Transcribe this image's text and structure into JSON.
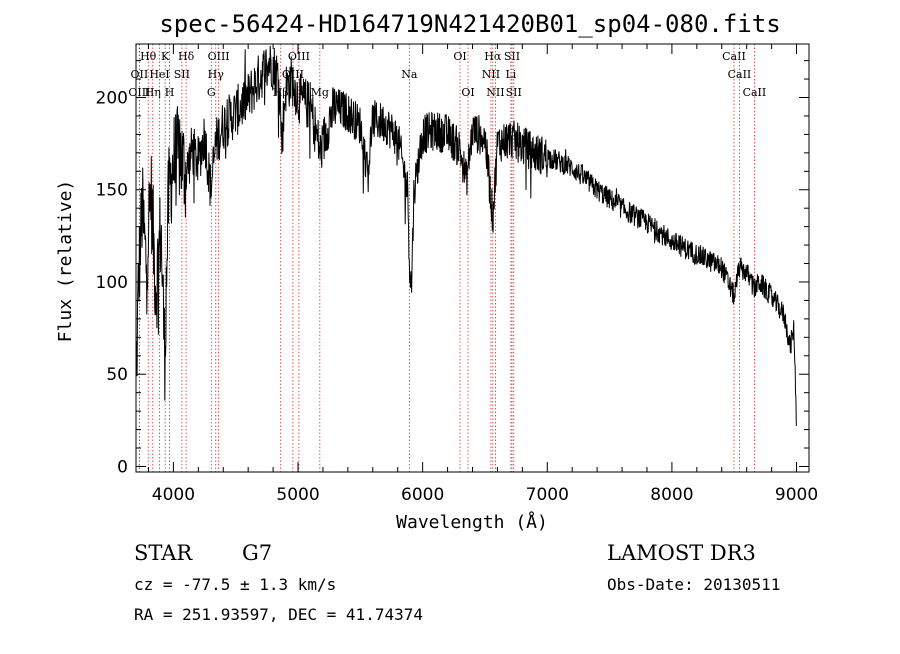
{
  "chart_data": {
    "type": "line",
    "title": "spec-56424-HD164719N421420B01_sp04-080.fits",
    "xlabel": "Wavelength (Å)",
    "ylabel": "Flux (relative)",
    "xlim": [
      3700,
      9100
    ],
    "ylim": [
      -3,
      229
    ],
    "x_ticks": [
      4000,
      5000,
      6000,
      7000,
      8000,
      9000
    ],
    "y_ticks": [
      0,
      50,
      100,
      150,
      200
    ],
    "grid": false,
    "legend": "none",
    "series": [
      {
        "color": "#000000",
        "anchors": [
          [
            3700,
            40
          ],
          [
            3720,
            100
          ],
          [
            3750,
            140
          ],
          [
            3780,
            110
          ],
          [
            3820,
            150
          ],
          [
            3860,
            95
          ],
          [
            3900,
            130
          ],
          [
            3930,
            60
          ],
          [
            3960,
            145
          ],
          [
            4000,
            165
          ],
          [
            4050,
            170
          ],
          [
            4100,
            158
          ],
          [
            4150,
            172
          ],
          [
            4200,
            165
          ],
          [
            4250,
            180
          ],
          [
            4300,
            150
          ],
          [
            4340,
            175
          ],
          [
            4400,
            185
          ],
          [
            4500,
            192
          ],
          [
            4600,
            200
          ],
          [
            4700,
            212
          ],
          [
            4780,
            220
          ],
          [
            4850,
            210
          ],
          [
            4870,
            175
          ],
          [
            4900,
            205
          ],
          [
            4950,
            210
          ],
          [
            5000,
            200
          ],
          [
            5100,
            195
          ],
          [
            5180,
            170
          ],
          [
            5250,
            188
          ],
          [
            5300,
            195
          ],
          [
            5400,
            192
          ],
          [
            5500,
            185
          ],
          [
            5560,
            160
          ],
          [
            5600,
            188
          ],
          [
            5700,
            186
          ],
          [
            5800,
            178
          ],
          [
            5880,
            150
          ],
          [
            5895,
            110
          ],
          [
            5910,
            95
          ],
          [
            5930,
            150
          ],
          [
            6000,
            180
          ],
          [
            6100,
            182
          ],
          [
            6200,
            180
          ],
          [
            6300,
            172
          ],
          [
            6350,
            155
          ],
          [
            6400,
            182
          ],
          [
            6500,
            178
          ],
          [
            6563,
            135
          ],
          [
            6600,
            175
          ],
          [
            6700,
            178
          ],
          [
            6800,
            174
          ],
          [
            6900,
            170
          ],
          [
            7000,
            168
          ],
          [
            7200,
            162
          ],
          [
            7400,
            150
          ],
          [
            7600,
            140
          ],
          [
            7800,
            132
          ],
          [
            8000,
            122
          ],
          [
            8200,
            115
          ],
          [
            8400,
            108
          ],
          [
            8500,
            92
          ],
          [
            8540,
            108
          ],
          [
            8600,
            105
          ],
          [
            8662,
            96
          ],
          [
            8700,
            100
          ],
          [
            8800,
            92
          ],
          [
            8900,
            82
          ],
          [
            8950,
            65
          ],
          [
            8980,
            75
          ],
          [
            9000,
            20
          ]
        ]
      }
    ],
    "line_markers": [
      {
        "label": "Hθ",
        "x": 3798,
        "row": 0
      },
      {
        "label": "K",
        "x": 3934,
        "row": 0
      },
      {
        "label": "Hδ",
        "x": 4102,
        "row": 0
      },
      {
        "label": "OIII",
        "x": 4363,
        "row": 0
      },
      {
        "label": "OIII",
        "x": 5007,
        "row": 0
      },
      {
        "label": "OI",
        "x": 6300,
        "row": 0
      },
      {
        "label": "Hα",
        "x": 6563,
        "row": 0
      },
      {
        "label": "SII",
        "x": 6717,
        "row": 0
      },
      {
        "label": "CaII",
        "x": 8498,
        "row": 0
      },
      {
        "label": "OII",
        "x": 3727,
        "row": 1
      },
      {
        "label": "HeI",
        "x": 3889,
        "row": 1
      },
      {
        "label": "SII",
        "x": 4068,
        "row": 1
      },
      {
        "label": "Hγ",
        "x": 4340,
        "row": 1
      },
      {
        "label": "OIII",
        "x": 4959,
        "row": 1
      },
      {
        "label": "Na",
        "x": 5893,
        "row": 1
      },
      {
        "label": "NII",
        "x": 6548,
        "row": 1
      },
      {
        "label": "Li",
        "x": 6708,
        "row": 1
      },
      {
        "label": "CaII",
        "x": 8542,
        "row": 1
      },
      {
        "label": "OIII",
        "x": 3727,
        "row": 2
      },
      {
        "label": "Hη",
        "x": 3835,
        "row": 2
      },
      {
        "label": "H",
        "x": 3969,
        "row": 2
      },
      {
        "label": "G",
        "x": 4304,
        "row": 2
      },
      {
        "label": "Hβ",
        "x": 4861,
        "row": 2
      },
      {
        "label": "Mg",
        "x": 5175,
        "row": 2
      },
      {
        "label": "OI",
        "x": 6364,
        "row": 2
      },
      {
        "label": "NII",
        "x": 6584,
        "row": 2
      },
      {
        "label": "SII",
        "x": 6731,
        "row": 2
      },
      {
        "label": "CaII",
        "x": 8662,
        "row": 2
      }
    ]
  },
  "info": {
    "object_class": "STAR",
    "subclass": "G7",
    "survey": "LAMOST DR3",
    "redshift": "cz = -77.5 ± 1.3 km/s",
    "obs_date": "Obs-Date: 20130511",
    "coords": "RA = 251.93597, DEC =  41.74374"
  }
}
